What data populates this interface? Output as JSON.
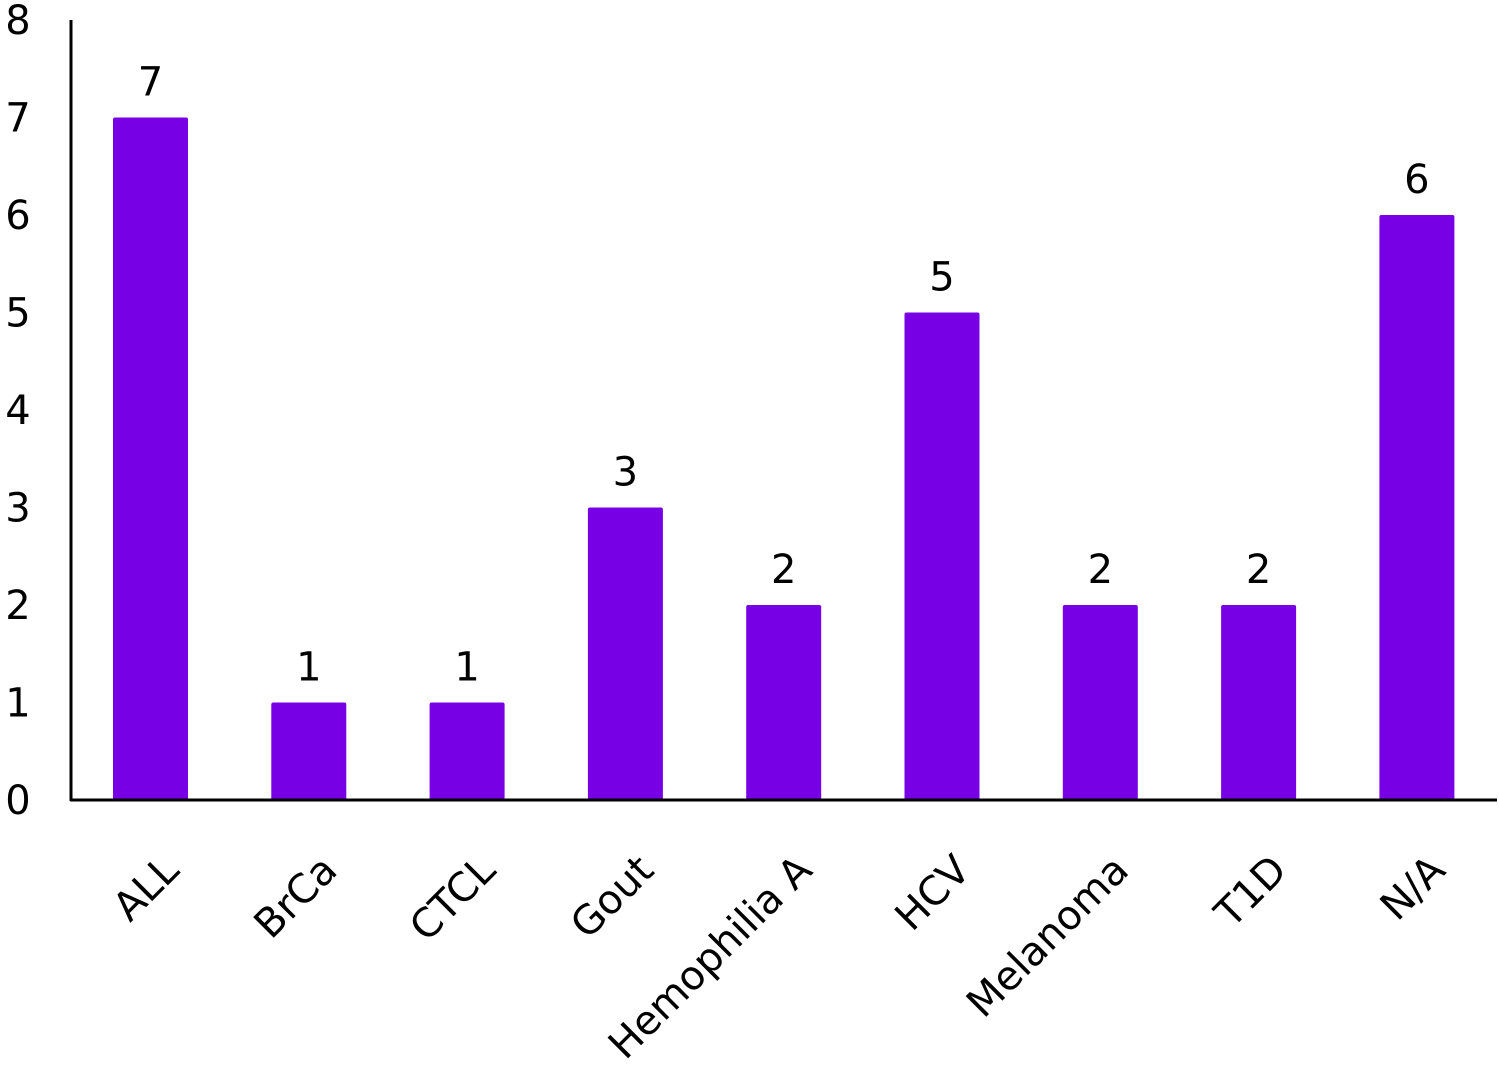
{
  "chart_data": {
    "type": "bar",
    "title": "",
    "xlabel": "",
    "ylabel": "",
    "categories": [
      "ALL",
      "BrCa",
      "CTCL",
      "Gout",
      "Hemophilia A",
      "HCV",
      "Melanoma",
      "T1D",
      "N/A"
    ],
    "values": [
      7,
      1,
      1,
      3,
      2,
      5,
      2,
      2,
      6
    ],
    "data_labels": [
      "7",
      "1",
      "1",
      "3",
      "2",
      "5",
      "2",
      "2",
      "6"
    ],
    "ylim": [
      0,
      8
    ],
    "yticks": [
      "0",
      "1",
      "2",
      "3",
      "4",
      "5",
      "6",
      "7",
      "8"
    ],
    "grid": false,
    "legend": "none",
    "bar_color": "#7800E4",
    "axis_color": "#000000"
  }
}
